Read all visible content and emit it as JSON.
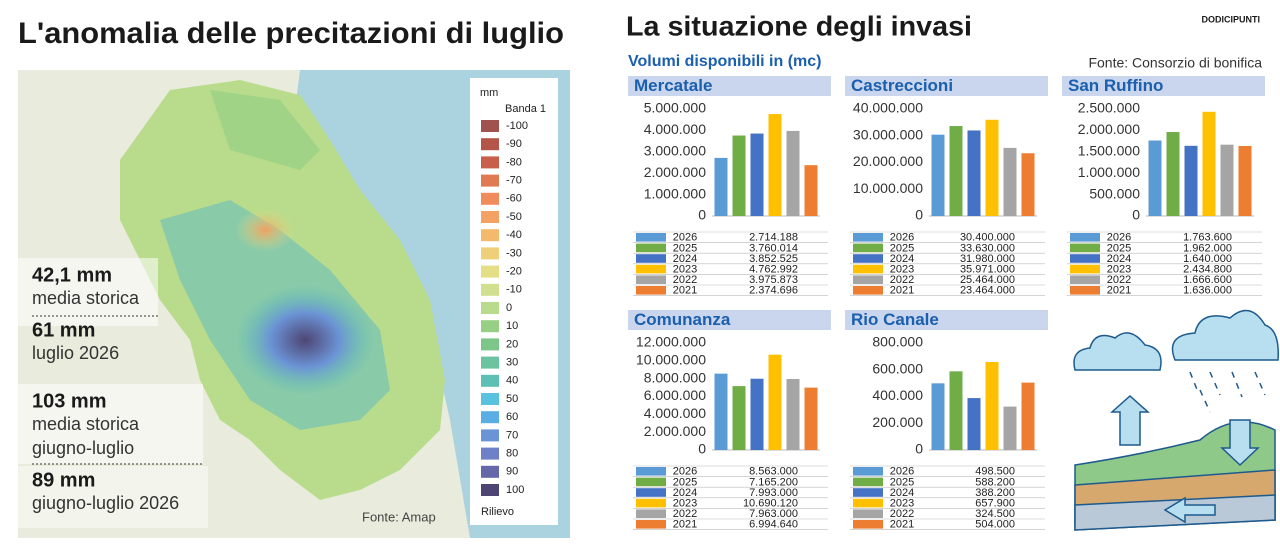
{
  "left": {
    "title": "L'anomalia delle precitazioni di luglio",
    "stats": [
      {
        "value": "42,1 mm",
        "lines": [
          "media storica"
        ]
      },
      {
        "value": "61 mm",
        "lines": [
          "luglio 2026"
        ]
      },
      {
        "value": "103 mm",
        "lines": [
          "media storica",
          "giugno-luglio"
        ]
      },
      {
        "value": "89 mm",
        "lines": [
          "giugno-luglio 2026"
        ]
      }
    ],
    "legend": {
      "unit": "mm",
      "band": "Banda 1",
      "items": [
        {
          "value": -100,
          "color": "#a0524f"
        },
        {
          "value": -90,
          "color": "#b4554a"
        },
        {
          "value": -80,
          "color": "#c75f4a"
        },
        {
          "value": -70,
          "color": "#e07a52"
        },
        {
          "value": -60,
          "color": "#f08c5c"
        },
        {
          "value": -50,
          "color": "#f4a164"
        },
        {
          "value": -40,
          "color": "#f5b96b"
        },
        {
          "value": -30,
          "color": "#f0cf7a"
        },
        {
          "value": -20,
          "color": "#e4de86"
        },
        {
          "value": -10,
          "color": "#d1e08e"
        },
        {
          "value": 0,
          "color": "#b8dc8c"
        },
        {
          "value": 10,
          "color": "#97cf85"
        },
        {
          "value": 20,
          "color": "#7dc68a"
        },
        {
          "value": 30,
          "color": "#6cc3a0"
        },
        {
          "value": 40,
          "color": "#5cc0b4"
        },
        {
          "value": 50,
          "color": "#58c2df"
        },
        {
          "value": 60,
          "color": "#5aaee3"
        },
        {
          "value": 70,
          "color": "#6b94d6"
        },
        {
          "value": 80,
          "color": "#6d80c8"
        },
        {
          "value": 90,
          "color": "#6467a8"
        },
        {
          "value": 100,
          "color": "#4e4574"
        }
      ],
      "relief": "Rilievo"
    },
    "source": "Fonte: Amap"
  },
  "right": {
    "title": "La situazione degli invasi",
    "brand": "DODICIPUNTI",
    "subtitle": "Volumi disponibili in (mc)",
    "source": "Fonte: Consorzio di bonifica"
  },
  "chart_data": [
    {
      "type": "bar",
      "title": "Mercatale",
      "categories": [
        "2026",
        "2025",
        "2024",
        "2023",
        "2022",
        "2021"
      ],
      "values": [
        2714188,
        3760014,
        3852525,
        4762992,
        3975873,
        2374696
      ],
      "value_labels": [
        "2.714.188",
        "3.760.014",
        "3.852.525",
        "4.762.992",
        "3.975.873",
        "2.374.696"
      ],
      "colors": [
        "#5b9bd5",
        "#70ad47",
        "#4472c4",
        "#ffc000",
        "#a5a5a5",
        "#ed7d31"
      ],
      "ylim": [
        0,
        5000000
      ],
      "yticks": [
        0,
        {
          "value": 1000000,
          "label": "1.000.000"
        },
        {
          "value": 2000000,
          "label": "2.000.000"
        },
        {
          "value": 3000000,
          "label": "3.000.000"
        },
        {
          "value": 4000000,
          "label": "4.000.000"
        },
        {
          "value": 5000000,
          "label": "5.000.000"
        }
      ]
    },
    {
      "type": "bar",
      "title": "Castreccioni",
      "categories": [
        "2026",
        "2025",
        "2024",
        "2023",
        "2022",
        "2021"
      ],
      "values": [
        30400000,
        33630000,
        31980000,
        35971000,
        25464000,
        23464000
      ],
      "value_labels": [
        "30.400.000",
        "33.630.000",
        "31.980.000",
        "35.971.000",
        "25.464.000",
        "23.464.000"
      ],
      "colors": [
        "#5b9bd5",
        "#70ad47",
        "#4472c4",
        "#ffc000",
        "#a5a5a5",
        "#ed7d31"
      ],
      "ylim": [
        0,
        40000000
      ],
      "yticks": [
        0,
        {
          "value": 10000000,
          "label": "10.000.000"
        },
        {
          "value": 20000000,
          "label": "20.000.000"
        },
        {
          "value": 30000000,
          "label": "30.000.000"
        },
        {
          "value": 40000000,
          "label": "40.000.000"
        }
      ]
    },
    {
      "type": "bar",
      "title": "San Ruffino",
      "categories": [
        "2026",
        "2025",
        "2024",
        "2023",
        "2022",
        "2021"
      ],
      "values": [
        1763600,
        1962000,
        1640000,
        2434800,
        1666600,
        1636000
      ],
      "value_labels": [
        "1.763.600",
        "1.962.000",
        "1.640.000",
        "2.434.800",
        "1.666.600",
        "1.636.000"
      ],
      "colors": [
        "#5b9bd5",
        "#70ad47",
        "#4472c4",
        "#ffc000",
        "#a5a5a5",
        "#ed7d31"
      ],
      "ylim": [
        0,
        2500000
      ],
      "yticks": [
        0,
        {
          "value": 500000,
          "label": "500.000"
        },
        {
          "value": 1000000,
          "label": "1.000.000"
        },
        {
          "value": 1500000,
          "label": "1.500.000"
        },
        {
          "value": 2000000,
          "label": "2.000.000"
        },
        {
          "value": 2500000,
          "label": "2.500.000"
        }
      ]
    },
    {
      "type": "bar",
      "title": "Comunanza",
      "categories": [
        "2026",
        "2025",
        "2024",
        "2023",
        "2022",
        "2021"
      ],
      "values": [
        8563000,
        7165200,
        7993000,
        10690120,
        7963000,
        6994640
      ],
      "value_labels": [
        "8.563.000",
        "7.165.200",
        "7.993.000",
        "10.690.120",
        "7.963.000",
        "6.994.640"
      ],
      "colors": [
        "#5b9bd5",
        "#70ad47",
        "#4472c4",
        "#ffc000",
        "#a5a5a5",
        "#ed7d31"
      ],
      "ylim": [
        0,
        12000000
      ],
      "yticks": [
        0,
        {
          "value": 2000000,
          "label": "2.000.000"
        },
        {
          "value": 4000000,
          "label": "4.000.000"
        },
        {
          "value": 6000000,
          "label": "6.000.000"
        },
        {
          "value": 8000000,
          "label": "8.000.000"
        },
        {
          "value": 10000000,
          "label": "10.000.000"
        },
        {
          "value": 12000000,
          "label": "12.000.000"
        }
      ]
    },
    {
      "type": "bar",
      "title": "Rio Canale",
      "categories": [
        "2026",
        "2025",
        "2024",
        "2023",
        "2022",
        "2021"
      ],
      "values": [
        498500,
        588200,
        388200,
        657900,
        324500,
        504000
      ],
      "value_labels": [
        "498.500",
        "588.200",
        "388.200",
        "657.900",
        "324.500",
        "504.000"
      ],
      "colors": [
        "#5b9bd5",
        "#70ad47",
        "#4472c4",
        "#ffc000",
        "#a5a5a5",
        "#ed7d31"
      ],
      "ylim": [
        0,
        800000
      ],
      "yticks": [
        0,
        {
          "value": 200000,
          "label": "200.000"
        },
        {
          "value": 400000,
          "label": "400.000"
        },
        {
          "value": 600000,
          "label": "600.000"
        },
        {
          "value": 800000,
          "label": "800.000"
        }
      ]
    }
  ]
}
